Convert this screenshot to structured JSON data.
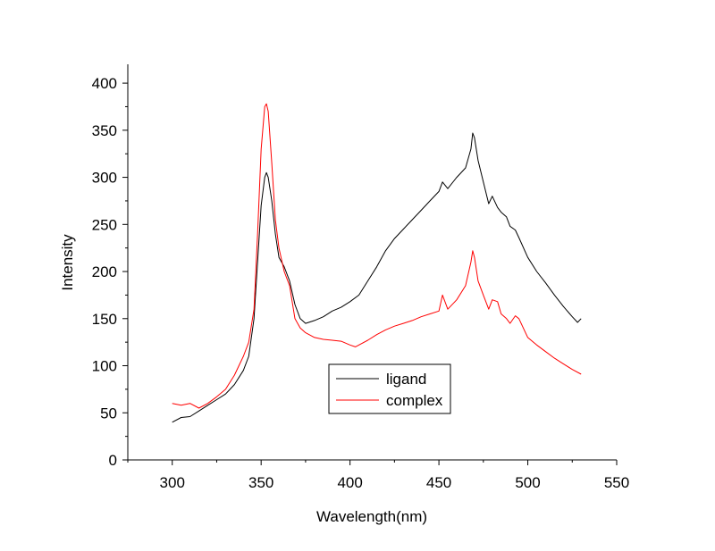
{
  "chart_data": {
    "type": "line",
    "title": "",
    "xlabel": "Wavelength(nm)",
    "ylabel": "Intensity",
    "xlim": [
      275,
      550
    ],
    "ylim": [
      0,
      420
    ],
    "x_ticks": [
      300,
      350,
      400,
      450,
      500,
      550
    ],
    "y_ticks": [
      0,
      50,
      100,
      150,
      200,
      250,
      300,
      350,
      400
    ],
    "grid": false,
    "legend_position": "lower-center",
    "series": [
      {
        "name": "ligand",
        "color": "#000000",
        "x": [
          300,
          305,
          310,
          315,
          320,
          325,
          330,
          335,
          340,
          343,
          346,
          348,
          350,
          352,
          353,
          354,
          356,
          358,
          360,
          363,
          366,
          369,
          372,
          375,
          380,
          385,
          390,
          395,
          400,
          405,
          410,
          415,
          420,
          425,
          430,
          435,
          440,
          445,
          450,
          452,
          455,
          460,
          465,
          468,
          469,
          470,
          472,
          475,
          478,
          480,
          483,
          485,
          488,
          490,
          493,
          495,
          500,
          505,
          510,
          515,
          520,
          525,
          528,
          530
        ],
        "y": [
          40,
          45,
          46,
          52,
          58,
          64,
          70,
          80,
          95,
          110,
          150,
          210,
          270,
          300,
          305,
          300,
          275,
          240,
          215,
          205,
          190,
          165,
          150,
          145,
          148,
          152,
          158,
          162,
          168,
          175,
          190,
          205,
          222,
          235,
          245,
          255,
          265,
          275,
          285,
          295,
          288,
          300,
          310,
          330,
          347,
          342,
          318,
          295,
          272,
          280,
          268,
          263,
          258,
          248,
          244,
          236,
          215,
          200,
          188,
          175,
          163,
          152,
          146,
          150
        ]
      },
      {
        "name": "complex",
        "color": "#ff0000",
        "x": [
          300,
          305,
          310,
          315,
          320,
          325,
          330,
          335,
          340,
          343,
          346,
          348,
          350,
          352,
          353,
          354,
          356,
          358,
          360,
          363,
          366,
          369,
          372,
          375,
          380,
          385,
          390,
          395,
          400,
          403,
          405,
          410,
          415,
          420,
          425,
          430,
          435,
          440,
          445,
          450,
          452,
          455,
          460,
          465,
          468,
          469,
          470,
          472,
          475,
          478,
          480,
          483,
          485,
          488,
          490,
          493,
          495,
          500,
          505,
          510,
          515,
          520,
          525,
          530
        ],
        "y": [
          60,
          58,
          60,
          55,
          60,
          67,
          75,
          90,
          110,
          125,
          160,
          240,
          330,
          375,
          378,
          370,
          315,
          255,
          225,
          200,
          185,
          150,
          140,
          135,
          130,
          128,
          127,
          126,
          122,
          120,
          122,
          127,
          133,
          138,
          142,
          145,
          148,
          152,
          155,
          158,
          175,
          160,
          170,
          185,
          210,
          222,
          215,
          190,
          175,
          160,
          170,
          168,
          155,
          150,
          145,
          153,
          150,
          130,
          122,
          115,
          108,
          102,
          96,
          91
        ]
      }
    ]
  }
}
